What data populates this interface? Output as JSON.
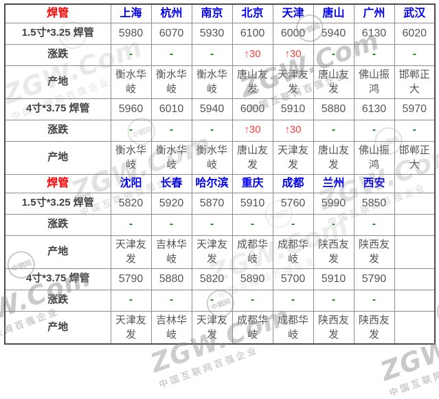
{
  "colors": {
    "product_red": "#ff0000",
    "city_blue": "#0000ee",
    "up_red": "#ff3b3b",
    "flat_green": "#007d00",
    "grid_gray": "#8c8c8c"
  },
  "watermark": {
    "brand": "ZGW.Com",
    "tagline": "中国互联网百强企业",
    "logo_text": "中钢网"
  },
  "table": {
    "sections": [
      {
        "header": {
          "label": "焊管",
          "cities": [
            "上海",
            "杭州",
            "南京",
            "北京",
            "天津",
            "唐山",
            "广州",
            "武汉"
          ]
        },
        "rows": [
          {
            "type": "price",
            "label": "1.5寸*3.25 焊管",
            "values": [
              "5980",
              "6070",
              "5930",
              "6100",
              "6000",
              "5940",
              "6130",
              "6020"
            ]
          },
          {
            "type": "change",
            "label": "涨跌",
            "values": [
              "-",
              "-",
              "-",
              "↑30",
              "↑30",
              "-",
              "-",
              "-"
            ]
          },
          {
            "type": "origin",
            "label": "产地",
            "values": [
              "衡水华岐",
              "衡水华岐",
              "衡水华岐",
              "唐山友发",
              "天津友发",
              "唐山友发",
              "佛山振鸿",
              "邯郸正大"
            ]
          },
          {
            "type": "price",
            "label": "4寸*3.75 焊管",
            "values": [
              "5960",
              "6010",
              "5940",
              "6000",
              "5910",
              "5880",
              "6130",
              "5970"
            ]
          },
          {
            "type": "change",
            "label": "涨跌",
            "values": [
              "-",
              "-",
              "-",
              "↑30",
              "↑30",
              "-",
              "-",
              "-"
            ]
          },
          {
            "type": "origin",
            "label": "产地",
            "values": [
              "衡水华岐",
              "衡水华岐",
              "衡水华岐",
              "唐山友发",
              "天津友发",
              "唐山友发",
              "佛山振鸿",
              "邯郸正大"
            ]
          }
        ]
      },
      {
        "header": {
          "label": "焊管",
          "cities": [
            "沈阳",
            "长春",
            "哈尔滨",
            "重庆",
            "成都",
            "兰州",
            "西安",
            ""
          ]
        },
        "rows": [
          {
            "type": "price",
            "label": "1.5寸*3.25 焊管",
            "values": [
              "5820",
              "5920",
              "5870",
              "5910",
              "5760",
              "5990",
              "5850",
              ""
            ]
          },
          {
            "type": "change",
            "label": "涨跌",
            "values": [
              "-",
              "-",
              "-",
              "-",
              "-",
              "-",
              "-",
              ""
            ]
          },
          {
            "type": "origin",
            "label": "产地",
            "values": [
              "天津友发",
              "吉林华岐",
              "天津友发",
              "成都华岐",
              "成都华岐",
              "陕西友发",
              "陕西友发",
              ""
            ]
          },
          {
            "type": "price",
            "label": "4寸*3.75 焊管",
            "values": [
              "5790",
              "5880",
              "5820",
              "5890",
              "5700",
              "5910",
              "5790",
              ""
            ]
          },
          {
            "type": "change",
            "label": "涨跌",
            "values": [
              "-",
              "-",
              "-",
              "-",
              "-",
              "-",
              "-",
              ""
            ]
          },
          {
            "type": "origin",
            "label": "产地",
            "values": [
              "天津友发",
              "吉林华岐",
              "天津友发",
              "成都华岐",
              "成都华岐",
              "陕西友发",
              "陕西友发",
              ""
            ]
          }
        ]
      }
    ]
  }
}
